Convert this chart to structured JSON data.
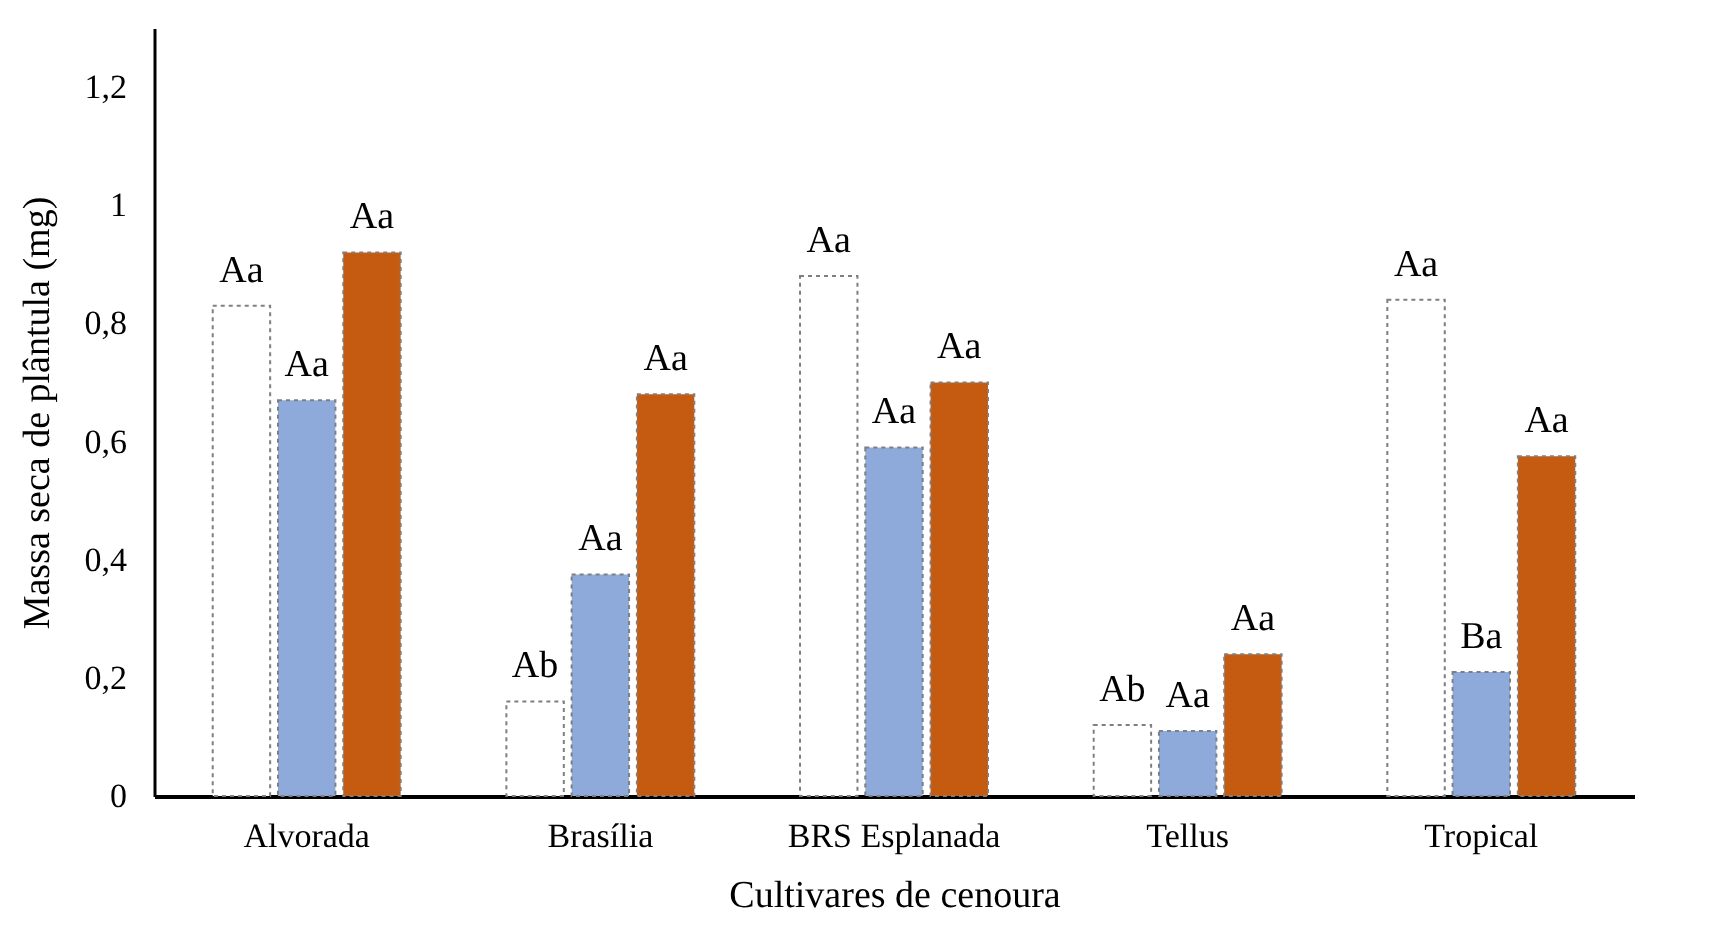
{
  "chart_data": {
    "type": "bar",
    "xlabel": "Cultivares de cenoura",
    "ylabel": "Massa seca de plântula (mg)",
    "categories": [
      "Alvorada",
      "Brasília",
      "BRS Esplanada",
      "Tellus",
      "Tropical"
    ],
    "series": [
      {
        "color": "#ffffff",
        "values": [
          0.83,
          0.16,
          0.88,
          0.12,
          0.84
        ],
        "value_labels": [
          "Aa",
          "Ab",
          "Aa",
          "Ab",
          "Aa"
        ]
      },
      {
        "color": "#8eaadb",
        "values": [
          0.67,
          0.375,
          0.59,
          0.11,
          0.21
        ],
        "value_labels": [
          "Aa",
          "Aa",
          "Aa",
          "Aa",
          "Ba"
        ]
      },
      {
        "color": "#c55a11",
        "values": [
          0.92,
          0.68,
          0.7,
          0.24,
          0.575
        ],
        "value_labels": [
          "Aa",
          "Aa",
          "Aa",
          "Aa",
          "Aa"
        ]
      }
    ],
    "ylim": [
      0,
      1.3
    ],
    "yticks": [
      0,
      {
        "value": 0.2,
        "label": "0,2"
      },
      {
        "value": 0.4,
        "label": "0,4"
      },
      {
        "value": 0.6,
        "label": "0,6"
      },
      {
        "value": 0.8,
        "label": "0,8"
      },
      1,
      {
        "value": 1.2,
        "label": "1,2"
      }
    ],
    "grid": false,
    "legend": false
  }
}
